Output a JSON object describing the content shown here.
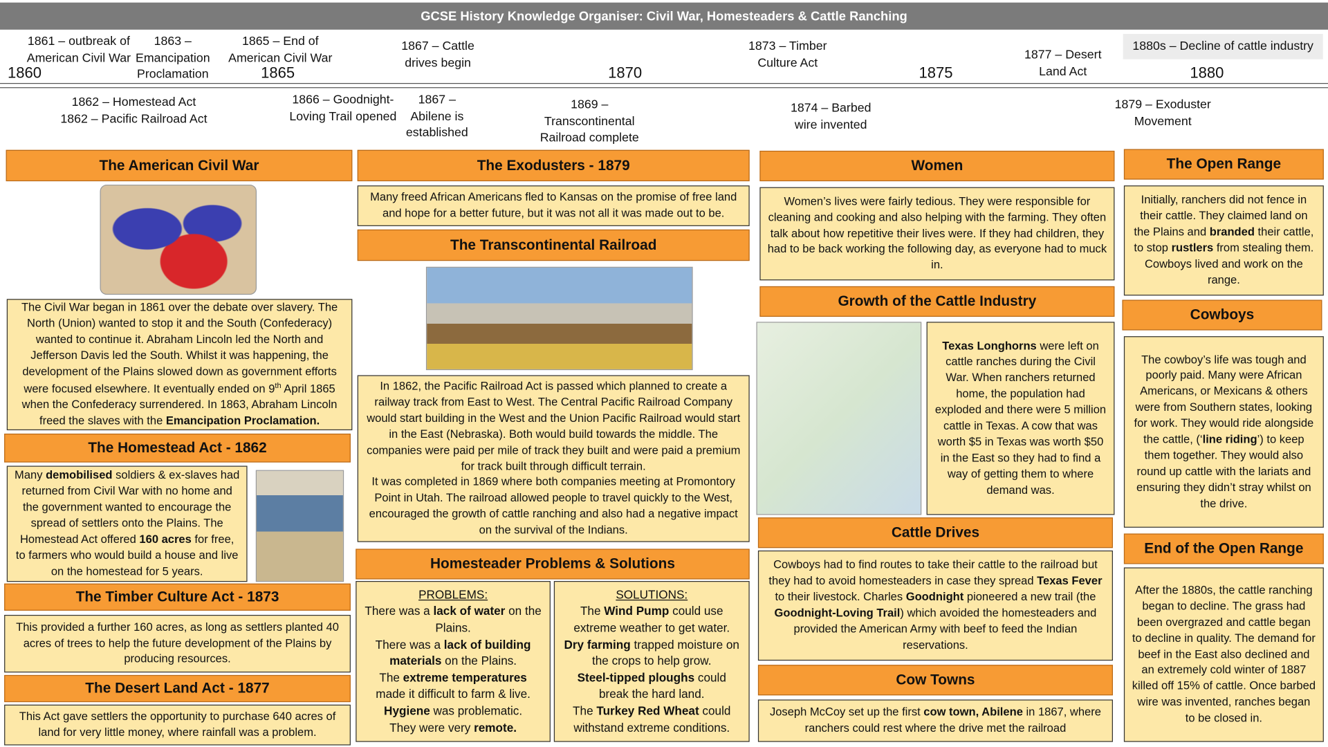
{
  "header": {
    "title": "GCSE History Knowledge Organiser: Civil War, Homesteaders & Cattle Ranching"
  },
  "timeline": {
    "years": [
      "1860",
      "1865",
      "1870",
      "1875",
      "1880"
    ],
    "above": [
      "1861 – outbreak of American Civil War",
      "1863 – Emancipation Proclamation",
      "1865 – End of American Civil War",
      "1867 – Cattle drives begin",
      "1873 – Timber Culture Act",
      "1877 – Desert Land Act",
      "1880s – Decline of cattle industry"
    ],
    "below": [
      "1862 – Homestead Act",
      "1862 – Pacific Railroad Act",
      "1866 – Goodnight-Loving Trail opened",
      "1867 – Abilene is established",
      "1869 – Transcontinental Railroad complete",
      "1874 – Barbed wire invented",
      "1879 – Exoduster Movement"
    ]
  },
  "sections": [
    {
      "title": "The American Civil War",
      "text": [
        [
          "The Civil War began in 1861 over the debate over slavery. The North (Union) wanted to stop it and the South (Confederacy) wanted to continue it. Abraham Lincoln led the North and Jefferson Davis led the South. Whilst it was happening, the development of the Plains slowed down as government efforts were focused elsewhere. It eventually ended on 9",
          {
            "sup": "th"
          },
          " April 1865 when the Confederacy surrendered. In 1863, Abraham Lincoln freed the slaves with the ",
          {
            "bold": "Emancipation Proclamation."
          }
        ]
      ]
    },
    {
      "title": "The Homestead Act - 1862",
      "text": [
        [
          "Many ",
          {
            "bold": "demobilised"
          },
          " soldiers & ex-slaves had returned from Civil War with no home and the government wanted to encourage the spread of settlers onto the Plains. The Homestead Act offered ",
          {
            "bold": "160 acres"
          },
          " for free, to farmers who would build a house and live on the homestead for 5 years."
        ]
      ]
    },
    {
      "title": "The Timber Culture Act - 1873",
      "text": [
        [
          "This provided a further 160 acres, as long as settlers planted 40 acres of trees to help the future development of the Plains by producing resources."
        ]
      ]
    },
    {
      "title": "The Desert Land Act - 1877",
      "text": [
        [
          "This Act gave settlers the opportunity to purchase 640 acres of land for very little money, where rainfall was a problem."
        ]
      ]
    },
    {
      "title": "The Exodusters - 1879",
      "text": [
        [
          "Many freed African Americans fled to Kansas on the promise of free land and hope for a better future, but it was not all it was made out to be."
        ]
      ]
    },
    {
      "title": "The Transcontinental Railroad",
      "text": [
        [
          "In 1862, the Pacific Railroad Act is passed which planned to create a railway track from East to West. The Central Pacific Railroad Company would start building in the West and the Union Pacific Railroad would start in the East (Nebraska). Both would build towards the middle. The companies were paid per mile of track they built and were paid a premium for track built through difficult terrain."
        ],
        [
          "It was completed in 1869 where both companies meeting at Promontory Point in Utah. The railroad allowed people to travel quickly to the West, encouraged the growth of cattle ranching and also had a negative impact on the survival of the Indians."
        ]
      ]
    },
    {
      "title": "Homesteader Problems & Solutions",
      "problems": {
        "heading": "PROBLEMS:",
        "text": [
          [
            "There was a ",
            {
              "bold": "lack of water"
            },
            " on the Plains."
          ],
          [
            "There was a ",
            {
              "bold": "lack of building materials"
            },
            " on the Plains."
          ],
          [
            "The ",
            {
              "bold": "extreme temperatures"
            },
            " made it difficult to farm & live."
          ],
          [
            {
              "bold": "Hygiene"
            },
            " was problematic."
          ],
          [
            "They were very ",
            {
              "bold": "remote."
            }
          ]
        ]
      },
      "solutions": {
        "heading": "SOLUTIONS:",
        "text": [
          [
            "The ",
            {
              "bold": "Wind Pump"
            },
            " could use extreme weather to get water."
          ],
          [
            {
              "bold": "Dry farming"
            },
            " trapped moisture on the crops to help grow."
          ],
          [
            {
              "bold": "Steel-tipped ploughs"
            },
            " could break the hard land."
          ],
          [
            "The ",
            {
              "bold": "Turkey Red Wheat"
            },
            " could withstand extreme conditions."
          ]
        ]
      }
    },
    {
      "title": "Women",
      "text": [
        [
          "Women’s lives were fairly tedious. They were responsible for cleaning and cooking and also helping with the farming. They often talk about how repetitive their lives were. If they had children, they had to be back working the following day, as everyone had to muck in."
        ]
      ]
    },
    {
      "title": "Growth of the Cattle Industry",
      "text": [
        [
          {
            "bold": "Texas Longhorns"
          },
          " were left on cattle ranches during the Civil War. When ranchers returned home, the population had exploded and there were 5 million cattle in Texas. A cow that was worth $5 in Texas was worth $50 in the East so they had to find a way of getting them to where demand was."
        ]
      ]
    },
    {
      "title": "Cattle Drives",
      "text": [
        [
          "Cowboys had to find routes to take their cattle to the railroad but they had to avoid homesteaders in case they spread ",
          {
            "bold": "Texas Fever"
          },
          " to their livestock. Charles ",
          {
            "bold": "Goodnight"
          },
          " pioneered a new trail (the ",
          {
            "bold": "Goodnight-Loving Trail"
          },
          ") which avoided the homesteaders and provided the American Army with beef to feed the Indian reservations."
        ]
      ]
    },
    {
      "title": "Cow Towns",
      "text": [
        [
          "Joseph McCoy set up the first ",
          {
            "bold": "cow town, Abilene"
          },
          " in 1867, where ranchers could rest where the drive met the railroad"
        ]
      ]
    },
    {
      "title": "The Open Range",
      "text": [
        [
          "Initially, ranchers did not fence in their cattle. They claimed land on the Plains and ",
          {
            "bold": "branded"
          },
          " their cattle, to stop ",
          {
            "bold": "rustlers"
          },
          " from stealing them. Cowboys lived and work on the range."
        ]
      ]
    },
    {
      "title": "Cowboys",
      "text": [
        [
          "The cowboy’s life was tough and poorly paid. Many were African Americans, or Mexicans & others were from Southern states, looking for work. They would ride alongside the cattle, (‘",
          {
            "bold": "line riding"
          },
          "’) to keep them together. They would also round up cattle with the lariats and ensuring they didn’t stray whilst on the drive."
        ]
      ]
    },
    {
      "title": "End of the Open Range",
      "text": [
        [
          "After the 1880s, the cattle ranching began to decline. The grass had been overgrazed and cattle began to decline in quality. The demand for beef in the East also declined and an extremely cold winter of 1887 killed off 15% of cattle. Once barbed wire was invented, ranches began to be closed in."
        ]
      ]
    }
  ]
}
